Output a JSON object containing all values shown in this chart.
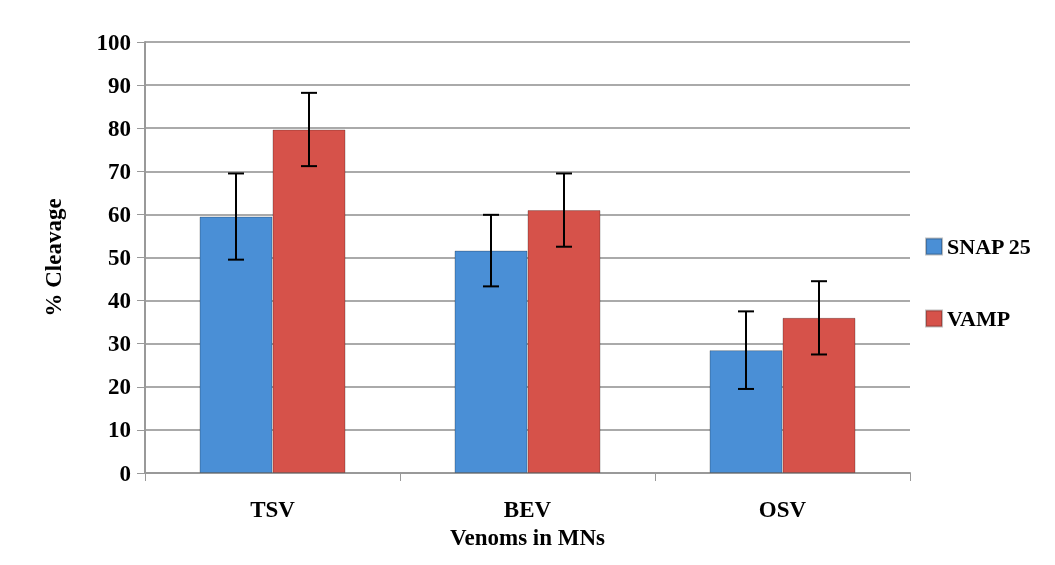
{
  "chart_data": {
    "type": "bar",
    "xlabel": "Venoms in MNs",
    "ylabel": "% Cleavage",
    "categories": [
      "TSV",
      "BEV",
      "OSV"
    ],
    "series": [
      {
        "name": "SNAP 25",
        "color": "#4a8fd6",
        "values": [
          59.5,
          51.6,
          28.5
        ],
        "errors": [
          10,
          8.3,
          9
        ]
      },
      {
        "name": "VAMP",
        "color": "#d6524a",
        "values": [
          79.7,
          61,
          36
        ],
        "errors": [
          8.5,
          8.5,
          8.5
        ]
      }
    ],
    "ylim": [
      0,
      100
    ],
    "yticks": [
      0,
      10,
      20,
      30,
      40,
      50,
      60,
      70,
      80,
      90,
      100
    ],
    "grid": "y",
    "legend": "right"
  }
}
